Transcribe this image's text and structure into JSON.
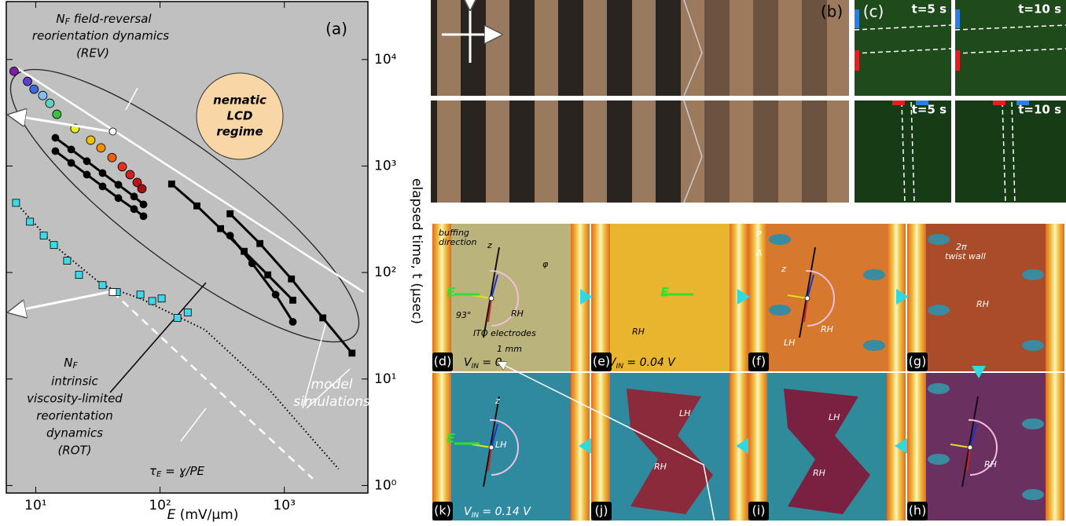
{
  "chart_data": {
    "type": "scatter",
    "panel_label": "(a)",
    "xlabel": {
      "symbol": "E",
      "unit": "  (mV/μm)"
    },
    "ylabel": "elapsed time, t (μsec)",
    "xscale": "log",
    "yscale": "log",
    "xlim": [
      5.8,
      4700
    ],
    "ylim": [
      0.85,
      35000
    ],
    "xticks": [
      {
        "value": 10,
        "label": "10¹"
      },
      {
        "value": 100,
        "label": "10²"
      },
      {
        "value": 1000,
        "label": "10³"
      }
    ],
    "yticks": [
      {
        "value": 1,
        "label": "10⁰"
      },
      {
        "value": 10,
        "label": "10¹"
      },
      {
        "value": 100,
        "label": "10²"
      },
      {
        "value": 1000,
        "label": "10³"
      },
      {
        "value": 10000,
        "label": "10⁴"
      }
    ],
    "background": "#c0c0c0",
    "series": [
      {
        "x": [
          6.95,
          4350
        ],
        "values": [
          8440,
          65.5
        ],
        "color": "#ffffff",
        "line": "solid",
        "marker": "none"
      },
      {
        "x": [
          41.7,
          1690
        ],
        "values": [
          65.5,
          1.16
        ],
        "color": "#ffffff",
        "line": "dashed",
        "marker": "none"
      },
      {
        "x": [
          6.95,
          14,
          34.5,
          69.5,
          230,
          736,
          2730
        ],
        "values": [
          451,
          181,
          76,
          57,
          29,
          8.2,
          1.43
        ],
        "color": "#000000",
        "line": "dotted",
        "marker": "none"
      },
      {
        "x": [
          6.95,
          9.0,
          11.6,
          14.0,
          17.9,
          22.3,
          34.5,
          44.9,
          69.5,
          86.5,
          103,
          138,
          167
        ],
        "values": [
          451,
          300,
          222,
          181,
          129,
          95,
          76,
          65.5,
          62,
          54,
          57,
          37.5,
          42.2
        ],
        "color": "#40d8e8",
        "line": "none",
        "marker": "square"
      },
      {
        "x": [
          14.4,
          19.3,
          25.8,
          34.5,
          46.2,
          61.8,
          73.6
        ],
        "values": [
          1840,
          1430,
          1110,
          859,
          667,
          517,
          436
        ],
        "color": "#000000",
        "line": "solid",
        "marker": "circle"
      },
      {
        "x": [
          14.4,
          19.3,
          25.8,
          34.5,
          46.2,
          61.8,
          73.6
        ],
        "values": [
          1380,
          1070,
          830,
          644,
          500,
          394,
          338
        ],
        "color": "#000000",
        "line": "solid",
        "marker": "circle"
      },
      {
        "x": [
          124,
          198,
          307,
          475,
          736,
          1170
        ],
        "values": [
          678,
          422,
          258,
          158,
          95,
          55
        ],
        "color": "#000000",
        "line": "solid",
        "marker": "square"
      },
      {
        "x": [
          366,
          636,
          1140,
          2040,
          3500
        ],
        "values": [
          356,
          187,
          87,
          37.5,
          17.5
        ],
        "color": "#000000",
        "line": "solid",
        "marker": "square"
      },
      {
        "x": [
          366,
          551,
          851,
          1170
        ],
        "values": [
          222,
          122,
          62,
          34.4
        ],
        "color": "#000000",
        "line": "solid",
        "marker": "circle"
      },
      {
        "x": [
          6.7,
          8.6,
          9.7,
          11.4,
          13.0,
          14.8,
          20.7,
          27.7,
          33.5,
          41.1,
          49.7,
          57.4,
          65.5,
          71.5
        ],
        "values": [
          7760,
          6230,
          5260,
          4590,
          3880,
          3060,
          2250,
          1750,
          1480,
          1200,
          984,
          830,
          701,
          612
        ],
        "colors": [
          "#7a1fa2",
          "#5a3fd0",
          "#3a6ae0",
          "#80c0f0",
          "#60d0c0",
          "#40c040",
          "#e8f020",
          "#f0c000",
          "#f09000",
          "#e86010",
          "#e03020",
          "#d02020",
          "#b81818",
          "#a01010"
        ],
        "line": "none",
        "marker": "circle"
      },
      {
        "x": [
          41.7
        ],
        "values": [
          2110
        ],
        "color": "#ffffff",
        "line": "none",
        "marker": "circle"
      },
      {
        "x": [
          41.7
        ],
        "values": [
          65.5
        ],
        "color": "#ffffff",
        "line": "none",
        "marker": "square"
      }
    ],
    "annotations": {
      "rev": {
        "n": "N",
        "sub": "F",
        "line1": " field-reversal",
        "line2": "reorientation dynamics",
        "line3": "(REV)"
      },
      "lcd": [
        "nematic",
        "LCD",
        "regime"
      ],
      "rot": {
        "n": "N",
        "sub": "F",
        "lines": [
          "intrinsic",
          "viscosity-limited",
          "reorientation",
          "dynamics",
          "(ROT)"
        ]
      },
      "model": [
        "model",
        "simulations"
      ],
      "tau": {
        "t": "τ",
        "sub": "E",
        "eq": " = ɣ/PE"
      }
    }
  },
  "panel_b": {
    "label": "(b)"
  },
  "panel_c": {
    "label": "(c)",
    "times": [
      "t=5 s",
      "t=10 s",
      "t=5 s",
      "t=10 s"
    ]
  },
  "panels": [
    {
      "label": "(d)",
      "texts": [
        "buffing",
        "direction",
        "z",
        "φ",
        "E",
        "93°",
        "RH",
        "ITO electrodes",
        "1 mm"
      ],
      "voltage": {
        "v": "V",
        "sub": "IN",
        "rest": " = 0"
      }
    },
    {
      "label": "(e)",
      "texts": [
        "E",
        "RH"
      ],
      "voltage": {
        "v": "V",
        "sub": "IN",
        "rest": " = 0.04 V"
      }
    },
    {
      "label": "(f)",
      "texts": [
        "P",
        "A",
        "z",
        "RH",
        "LH"
      ]
    },
    {
      "label": "(g)",
      "texts": [
        "2π",
        "twist wall",
        "RH"
      ]
    },
    {
      "label": "(k)",
      "texts": [
        "z",
        "E",
        "LH"
      ],
      "voltage": {
        "v": "V",
        "sub": "IN",
        "rest": " = 0.14 V"
      }
    },
    {
      "label": "(j)",
      "texts": [
        "LH",
        "RH"
      ]
    },
    {
      "label": "(i)",
      "texts": [
        "LH",
        "RH"
      ]
    },
    {
      "label": "(h)",
      "texts": [
        "RH"
      ]
    }
  ]
}
